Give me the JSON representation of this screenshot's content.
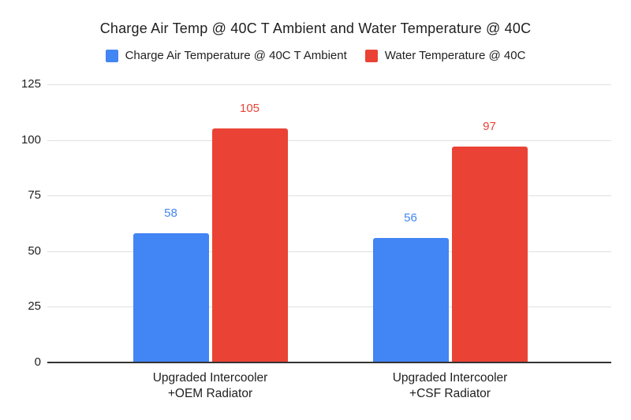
{
  "chart_data": {
    "type": "bar",
    "title": "Charge Air Temp @ 40C T Ambient and Water Temperature @ 40C",
    "categories": [
      "Upgraded Intercooler\n+OEM Radiator",
      "Upgraded Intercooler\n+CSF Radiator"
    ],
    "series": [
      {
        "name": "Charge Air Temperature @ 40C T Ambient",
        "color": "#4285F4",
        "values": [
          58,
          56
        ]
      },
      {
        "name": "Water Temperature @ 40C",
        "color": "#EA4335",
        "values": [
          105,
          97
        ]
      }
    ],
    "yticks": [
      0,
      25,
      50,
      75,
      100,
      125
    ],
    "ylim": [
      0,
      125
    ],
    "grid": true,
    "legend_position": "top",
    "value_labels": true
  },
  "colors": {
    "background": "#ffffff",
    "gridline": "#e0e0e0",
    "axis": "#333333",
    "text": "#1f1f1f"
  }
}
